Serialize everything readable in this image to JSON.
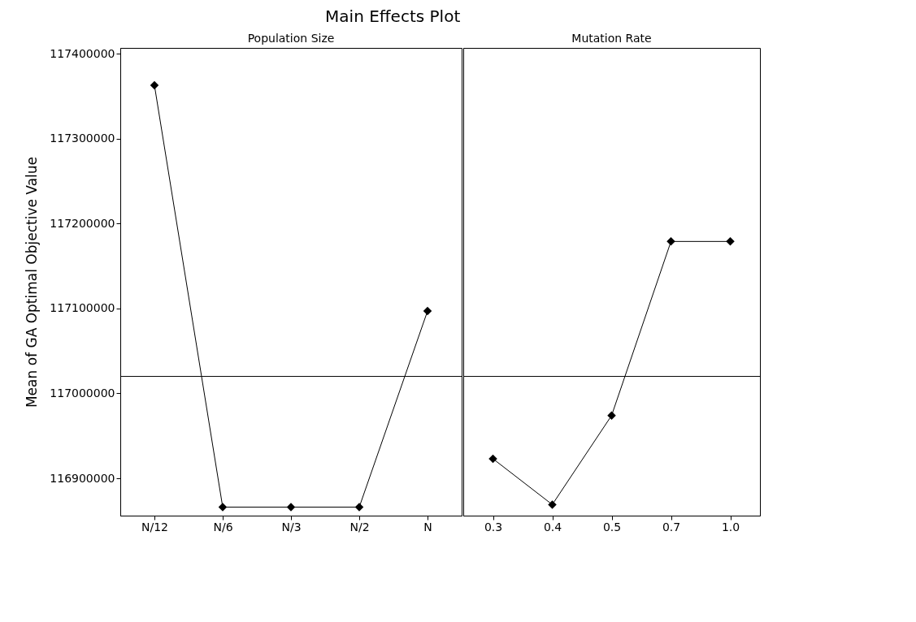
{
  "chart_data": [
    {
      "type": "line",
      "title": "Main Effects Plot",
      "subtitle": "Population Size",
      "ylabel": "Mean of GA Optimal Objective Value",
      "categories": [
        "N/12",
        "N/6",
        "N/3",
        "N/2",
        "N"
      ],
      "series": [
        {
          "color": "#000000",
          "values": [
            117363000,
            116866000,
            116866000,
            116866000,
            117097000
          ]
        }
      ],
      "ylim": [
        116856000,
        117407000
      ],
      "yticks": [
        116900000,
        117000000,
        117100000,
        117200000,
        117300000,
        117400000
      ],
      "ref_lines": [
        {
          "axis": "y",
          "value": 117020000
        }
      ],
      "marker": "diamond",
      "line_style": "solid",
      "grid": false
    },
    {
      "type": "line",
      "title": "Mutation Rate",
      "categories": [
        "0.3",
        "0.4",
        "0.5",
        "0.7",
        "1.0"
      ],
      "series": [
        {
          "color": "#000000",
          "values": [
            116923000,
            116869000,
            116974000,
            117179000,
            117179000
          ]
        }
      ],
      "ylim": [
        116856000,
        117407000
      ],
      "yticks": [
        116900000,
        117000000,
        117100000,
        117200000,
        117300000,
        117400000
      ],
      "ref_lines": [
        {
          "axis": "y",
          "value": 117020000
        }
      ],
      "marker": "diamond",
      "line_style": "solid",
      "grid": false,
      "tick_labels": "x"
    }
  ]
}
